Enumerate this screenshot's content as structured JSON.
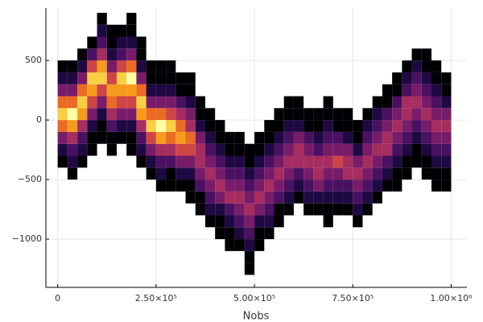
{
  "chart_data": {
    "type": "histogram2d",
    "xlabel": "Nobs",
    "colormap": "inferno",
    "grid": true,
    "xlim": [
      -30000,
      1040000
    ],
    "ylim": [
      -1405,
      940
    ],
    "xticks": [
      0,
      {
        "value": 250000,
        "label": "2.50×10⁵"
      },
      {
        "value": 500000,
        "label": "5.00×10⁵"
      },
      {
        "value": 750000,
        "label": "7.50×10⁵"
      },
      {
        "value": 1000000,
        "label": "1.00×10⁶"
      }
    ],
    "yticks": [
      500,
      0,
      {
        "value": -500,
        "label": "−500"
      },
      {
        "value": -1000,
        "label": "−1000"
      }
    ],
    "xbins": [
      0,
      25000,
      50000,
      75000,
      100000,
      125000,
      150000,
      175000,
      200000,
      225000,
      250000,
      275000,
      300000,
      325000,
      350000,
      375000,
      400000,
      425000,
      450000,
      475000,
      500000,
      525000,
      550000,
      575000,
      600000,
      625000,
      650000,
      675000,
      700000,
      725000,
      750000,
      775000,
      800000,
      825000,
      850000,
      875000,
      900000,
      925000,
      950000,
      975000,
      1000000
    ],
    "ybins": [
      -1400,
      -1300,
      -1200,
      -1100,
      -1000,
      -900,
      -800,
      -700,
      -600,
      -500,
      -400,
      -300,
      -200,
      -100,
      0,
      100,
      200,
      300,
      400,
      500,
      600,
      700,
      800,
      900
    ],
    "counts": [
      [
        0,
        0,
        0,
        0,
        0,
        0,
        0,
        0,
        0,
        0,
        1,
        2,
        4,
        7,
        9,
        7,
        4,
        2,
        1,
        0,
        0,
        0,
        0
      ],
      [
        0,
        0,
        0,
        0,
        0,
        0,
        0,
        0,
        0,
        1,
        2,
        3,
        5,
        8,
        10,
        7,
        4,
        2,
        1,
        0,
        0,
        0,
        0
      ],
      [
        0,
        0,
        0,
        0,
        0,
        0,
        0,
        0,
        0,
        0,
        1,
        2,
        3,
        5,
        8,
        9,
        7,
        4,
        2,
        1,
        0,
        0,
        0
      ],
      [
        0,
        0,
        0,
        0,
        0,
        0,
        0,
        0,
        0,
        0,
        0,
        1,
        1,
        2,
        4,
        6,
        8,
        9,
        6,
        3,
        1,
        0,
        0
      ],
      [
        0,
        0,
        0,
        0,
        0,
        0,
        0,
        0,
        0,
        0,
        0,
        0,
        1,
        1,
        2,
        4,
        6,
        9,
        8,
        5,
        3,
        2,
        1
      ],
      [
        0,
        0,
        0,
        0,
        0,
        0,
        0,
        0,
        0,
        0,
        0,
        1,
        1,
        3,
        5,
        7,
        8,
        6,
        4,
        2,
        1,
        1,
        0
      ],
      [
        0,
        0,
        0,
        0,
        0,
        0,
        0,
        0,
        0,
        0,
        0,
        0,
        1,
        2,
        4,
        6,
        8,
        9,
        6,
        3,
        2,
        1,
        0
      ],
      [
        0,
        0,
        0,
        0,
        0,
        0,
        0,
        0,
        0,
        0,
        0,
        1,
        1,
        2,
        4,
        6,
        8,
        10,
        7,
        4,
        2,
        1,
        1
      ],
      [
        0,
        0,
        0,
        0,
        0,
        0,
        0,
        0,
        0,
        0,
        1,
        2,
        3,
        5,
        8,
        9,
        7,
        4,
        2,
        1,
        1,
        0,
        0
      ],
      [
        0,
        0,
        0,
        0,
        0,
        0,
        0,
        0,
        0,
        1,
        2,
        4,
        6,
        9,
        7,
        4,
        2,
        1,
        1,
        0,
        0,
        0,
        0
      ],
      [
        0,
        0,
        0,
        0,
        0,
        0,
        0,
        0,
        1,
        2,
        3,
        5,
        8,
        10,
        7,
        4,
        2,
        1,
        1,
        0,
        0,
        0,
        0
      ],
      [
        0,
        0,
        0,
        0,
        0,
        0,
        0,
        0,
        1,
        1,
        3,
        5,
        7,
        9,
        6,
        4,
        2,
        1,
        1,
        0,
        0,
        0,
        0
      ],
      [
        0,
        0,
        0,
        0,
        0,
        0,
        0,
        0,
        1,
        2,
        4,
        6,
        8,
        7,
        5,
        3,
        1,
        1,
        0,
        0,
        0,
        0,
        0
      ],
      [
        0,
        0,
        0,
        0,
        0,
        0,
        0,
        1,
        1,
        2,
        4,
        6,
        7,
        5,
        4,
        2,
        1,
        1,
        0,
        0,
        0,
        0,
        0
      ],
      [
        0,
        0,
        0,
        0,
        0,
        0,
        1,
        1,
        3,
        4,
        5,
        5,
        4,
        2,
        1,
        1,
        0,
        0,
        0,
        0,
        0,
        0,
        0
      ],
      [
        0,
        0,
        0,
        0,
        0,
        1,
        2,
        3,
        4,
        5,
        4,
        3,
        2,
        1,
        1,
        0,
        0,
        0,
        0,
        0,
        0,
        0,
        0
      ],
      [
        0,
        0,
        0,
        0,
        1,
        1,
        2,
        4,
        5,
        4,
        3,
        2,
        1,
        1,
        0,
        0,
        0,
        0,
        0,
        0,
        0,
        0,
        0
      ],
      [
        0,
        0,
        0,
        1,
        1,
        2,
        3,
        5,
        4,
        3,
        2,
        1,
        1,
        0,
        0,
        0,
        0,
        0,
        0,
        0,
        0,
        0,
        0
      ],
      [
        0,
        0,
        0,
        1,
        2,
        3,
        4,
        5,
        4,
        3,
        2,
        1,
        1,
        0,
        0,
        0,
        0,
        0,
        0,
        0,
        0,
        0,
        0
      ],
      [
        0,
        1,
        1,
        2,
        3,
        4,
        5,
        4,
        3,
        2,
        1,
        1,
        0,
        0,
        0,
        0,
        0,
        0,
        0,
        0,
        0,
        0,
        0
      ],
      [
        0,
        0,
        0,
        1,
        1,
        2,
        4,
        5,
        4,
        3,
        2,
        1,
        1,
        0,
        0,
        0,
        0,
        0,
        0,
        0,
        0,
        0,
        0
      ],
      [
        0,
        0,
        0,
        0,
        1,
        2,
        3,
        4,
        5,
        4,
        3,
        2,
        1,
        1,
        0,
        0,
        0,
        0,
        0,
        0,
        0,
        0,
        0
      ],
      [
        0,
        0,
        0,
        0,
        0,
        1,
        1,
        3,
        4,
        5,
        4,
        3,
        2,
        1,
        1,
        0,
        0,
        0,
        0,
        0,
        0,
        0,
        0
      ],
      [
        0,
        0,
        0,
        0,
        0,
        0,
        1,
        2,
        3,
        4,
        5,
        4,
        3,
        2,
        1,
        1,
        0,
        0,
        0,
        0,
        0,
        0,
        0
      ],
      [
        0,
        0,
        0,
        0,
        0,
        0,
        0,
        1,
        2,
        3,
        5,
        5,
        4,
        2,
        1,
        1,
        0,
        0,
        0,
        0,
        0,
        0,
        0
      ],
      [
        0,
        0,
        0,
        0,
        0,
        0,
        1,
        2,
        3,
        4,
        5,
        4,
        3,
        1,
        1,
        0,
        0,
        0,
        0,
        0,
        0,
        0,
        0
      ],
      [
        0,
        0,
        0,
        0,
        0,
        0,
        1,
        2,
        4,
        5,
        5,
        3,
        2,
        1,
        1,
        0,
        0,
        0,
        0,
        0,
        0,
        0,
        0
      ],
      [
        0,
        0,
        0,
        0,
        0,
        1,
        1,
        2,
        3,
        4,
        5,
        4,
        3,
        2,
        1,
        1,
        0,
        0,
        0,
        0,
        0,
        0,
        0
      ],
      [
        0,
        0,
        0,
        0,
        0,
        0,
        1,
        2,
        3,
        4,
        6,
        4,
        3,
        1,
        1,
        0,
        0,
        0,
        0,
        0,
        0,
        0,
        0
      ],
      [
        0,
        0,
        0,
        0,
        0,
        0,
        1,
        2,
        3,
        5,
        5,
        4,
        2,
        1,
        1,
        0,
        0,
        0,
        0,
        0,
        0,
        0,
        0
      ],
      [
        0,
        0,
        0,
        0,
        0,
        1,
        2,
        3,
        4,
        5,
        4,
        2,
        1,
        1,
        0,
        0,
        0,
        0,
        0,
        0,
        0,
        0,
        0
      ],
      [
        0,
        0,
        0,
        0,
        0,
        0,
        1,
        2,
        3,
        4,
        5,
        4,
        3,
        2,
        1,
        0,
        0,
        0,
        0,
        0,
        0,
        0,
        0
      ],
      [
        0,
        0,
        0,
        0,
        0,
        0,
        0,
        1,
        2,
        3,
        4,
        5,
        4,
        3,
        2,
        1,
        0,
        0,
        0,
        0,
        0,
        0,
        0
      ],
      [
        0,
        0,
        0,
        0,
        0,
        0,
        0,
        0,
        1,
        2,
        3,
        5,
        5,
        4,
        3,
        1,
        1,
        0,
        0,
        0,
        0,
        0,
        0
      ],
      [
        0,
        0,
        0,
        0,
        0,
        0,
        0,
        0,
        1,
        1,
        2,
        3,
        4,
        5,
        4,
        3,
        1,
        1,
        0,
        0,
        0,
        0,
        0
      ],
      [
        0,
        0,
        0,
        0,
        0,
        0,
        0,
        0,
        0,
        1,
        1,
        2,
        3,
        4,
        5,
        5,
        3,
        2,
        1,
        0,
        0,
        0,
        0
      ],
      [
        0,
        0,
        0,
        0,
        0,
        0,
        0,
        0,
        0,
        0,
        1,
        1,
        2,
        3,
        4,
        5,
        4,
        3,
        2,
        1,
        0,
        0,
        0
      ],
      [
        0,
        0,
        0,
        0,
        0,
        0,
        0,
        0,
        0,
        1,
        1,
        2,
        3,
        4,
        5,
        4,
        3,
        2,
        1,
        1,
        0,
        0,
        0
      ],
      [
        0,
        0,
        0,
        0,
        0,
        0,
        0,
        0,
        1,
        1,
        2,
        3,
        4,
        5,
        4,
        3,
        2,
        1,
        1,
        0,
        0,
        0,
        0
      ],
      [
        0,
        0,
        0,
        0,
        0,
        0,
        0,
        0,
        1,
        1,
        2,
        3,
        4,
        5,
        4,
        2,
        1,
        1,
        0,
        0,
        0,
        0,
        0
      ]
    ]
  }
}
